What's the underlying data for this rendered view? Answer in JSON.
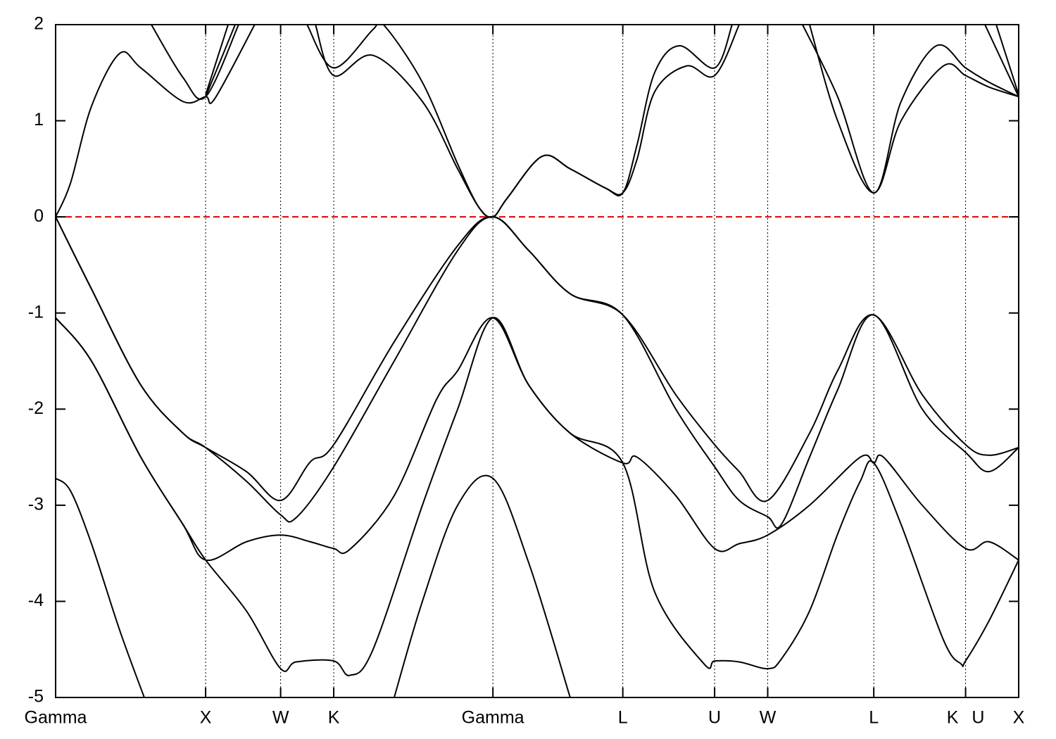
{
  "chart_data": {
    "type": "line",
    "xlim": [
      0,
      6.42
    ],
    "ylim": [
      -5,
      2
    ],
    "yticks": [
      -5,
      -4,
      -3,
      -2,
      -1,
      0,
      1,
      2
    ],
    "xticks": [
      {
        "value": 0,
        "label": "Gamma"
      },
      {
        "value": 1.0,
        "label": "X"
      },
      {
        "value": 1.5,
        "label": "W"
      },
      {
        "value": 1.854,
        "label": "K"
      },
      {
        "value": 2.915,
        "label": "Gamma"
      },
      {
        "value": 3.781,
        "label": "L"
      },
      {
        "value": 4.393,
        "label": "U"
      },
      {
        "value": 4.747,
        "label": "W"
      },
      {
        "value": 5.454,
        "label": "L"
      },
      {
        "value": 6.066,
        "label": "K U"
      },
      {
        "value": 6.42,
        "label": "X"
      }
    ],
    "grid": true,
    "hline": {
      "y": 0,
      "color": "#dd0000"
    },
    "series": [
      {
        "color": "#000000",
        "x": [
          0,
          0.239,
          0.568,
          0.849,
          1.0,
          1.272,
          1.5,
          1.697,
          1.854,
          2.257,
          2.68,
          2.915,
          3.154,
          3.43,
          3.781,
          4.134,
          4.393,
          4.557,
          4.747,
          5.026,
          5.213,
          5.454,
          5.777,
          6.066,
          6.223,
          6.42
        ],
        "values": [
          0,
          -0.75,
          -1.75,
          -2.25,
          -2.4,
          -2.65,
          -2.95,
          -2.55,
          -2.37,
          -1.3,
          -0.3,
          0,
          -0.35,
          -0.8,
          -1.02,
          -1.85,
          -2.37,
          -2.65,
          -2.95,
          -2.25,
          -1.6,
          -1.02,
          -1.85,
          -2.37,
          -2.48,
          -2.4
        ]
      },
      {
        "color": "#000000",
        "x": [
          0,
          0.239,
          0.568,
          0.849,
          1.0,
          1.272,
          1.5,
          1.603,
          1.854,
          2.257,
          2.68,
          2.915,
          3.154,
          3.43,
          3.781,
          4.134,
          4.393,
          4.557,
          4.747,
          4.838,
          5.026,
          5.213,
          5.454,
          5.777,
          6.066,
          6.223,
          6.42
        ],
        "values": [
          0,
          -0.75,
          -1.75,
          -2.25,
          -2.4,
          -2.75,
          -3.1,
          -3.13,
          -2.6,
          -1.5,
          -0.35,
          0,
          -0.35,
          -0.8,
          -1.02,
          -2.0,
          -2.6,
          -2.95,
          -3.12,
          -3.2,
          -2.5,
          -1.8,
          -1.02,
          -2.0,
          -2.45,
          -2.65,
          -2.4
        ]
      },
      {
        "color": "#000000",
        "x": [
          0,
          0.239,
          0.568,
          0.849,
          1.0,
          1.272,
          1.5,
          1.697,
          1.854,
          1.961,
          2.257,
          2.539,
          2.68,
          2.915,
          3.154,
          3.43,
          3.781,
          3.876,
          4.134,
          4.393,
          4.557,
          4.747,
          5.026,
          5.364,
          5.454,
          5.519,
          5.777,
          6.066,
          6.223,
          6.42
        ],
        "values": [
          -1.05,
          -1.5,
          -2.5,
          -3.2,
          -3.57,
          -3.38,
          -3.31,
          -3.38,
          -3.45,
          -3.46,
          -2.9,
          -1.9,
          -1.6,
          -1.05,
          -1.75,
          -2.25,
          -2.56,
          -2.5,
          -2.9,
          -3.45,
          -3.4,
          -3.31,
          -3.0,
          -2.5,
          -2.56,
          -2.5,
          -3.0,
          -3.45,
          -3.38,
          -3.57
        ]
      },
      {
        "color": "#000000",
        "x": [
          0,
          0.239,
          0.568,
          0.849,
          1.0,
          1.272,
          1.5,
          1.603,
          1.854,
          1.961,
          2.116,
          2.445,
          2.68,
          2.915,
          3.154,
          3.43,
          3.781,
          3.993,
          4.322,
          4.393,
          4.557,
          4.747,
          4.838,
          5.026,
          5.213,
          5.364,
          5.454,
          5.636,
          5.918,
          6.035,
          6.066,
          6.223,
          6.42
        ],
        "values": [
          -1.05,
          -1.5,
          -2.5,
          -3.2,
          -3.57,
          -4.1,
          -4.7,
          -4.63,
          -4.62,
          -4.77,
          -4.5,
          -3.0,
          -2.0,
          -1.05,
          -1.75,
          -2.25,
          -2.56,
          -3.9,
          -4.65,
          -4.62,
          -4.63,
          -4.7,
          -4.6,
          -4.1,
          -3.3,
          -2.75,
          -2.56,
          -3.2,
          -4.4,
          -4.65,
          -4.62,
          -4.2,
          -3.57
        ]
      },
      {
        "color": "#000000",
        "x": [
          0,
          0.099,
          0.239,
          0.427,
          0.591,
          1.5,
          2.257,
          2.445,
          2.68,
          2.915,
          3.154,
          3.43
        ],
        "values": [
          -2.72,
          -2.85,
          -3.4,
          -4.3,
          -5.0,
          null,
          -5.0,
          -4.0,
          -3.0,
          -2.72,
          -3.6,
          -5.0
        ]
      },
      {
        "color": "#000000",
        "x": [
          0,
          0.099,
          0.239,
          0.427,
          0.568,
          0.849,
          1.0,
          1.061,
          1.327,
          1.6,
          1.732,
          1.854,
          2.116,
          2.445,
          2.68,
          2.821,
          2.915,
          3.013,
          3.243,
          3.43,
          3.665,
          3.781,
          3.876,
          3.993,
          4.205,
          4.393,
          4.557,
          4.75,
          5.026,
          5.213,
          5.454,
          5.636,
          5.918,
          6.066,
          6.223,
          6.42
        ],
        "values": [
          0,
          0.35,
          1.15,
          1.7,
          1.55,
          1.2,
          1.25,
          1.23,
          2.0,
          null,
          2.0,
          1.47,
          1.68,
          1.2,
          0.5,
          0.1,
          0,
          0.2,
          0.63,
          0.5,
          0.3,
          0.25,
          0.6,
          1.3,
          1.57,
          1.47,
          2.0,
          null,
          2.0,
          1.0,
          0.25,
          1.0,
          1.57,
          1.47,
          1.35,
          1.25
        ]
      },
      {
        "color": "#000000",
        "x": [
          0.638,
          0.849,
          1.0,
          1.22,
          1.5,
          1.676,
          1.854,
          2.116,
          2.185,
          2.445,
          2.68,
          2.821,
          2.915,
          3.013,
          3.243,
          3.43,
          3.665,
          3.781,
          3.876,
          3.993,
          4.158,
          4.393,
          4.51,
          4.75,
          4.979,
          5.213,
          5.454,
          5.636,
          5.871,
          6.066,
          6.223,
          6.42
        ],
        "values": [
          2.0,
          1.45,
          1.25,
          2.0,
          null,
          2.0,
          1.55,
          1.95,
          2.0,
          1.4,
          0.55,
          0.1,
          0,
          0.2,
          0.63,
          0.5,
          0.3,
          0.25,
          0.75,
          1.5,
          1.78,
          1.55,
          2.0,
          null,
          2.0,
          1.25,
          0.25,
          1.2,
          1.78,
          1.55,
          1.4,
          1.25
        ]
      },
      {
        "color": "#000000",
        "x": [
          1.0,
          1.197,
          1.5,
          6.195,
          6.42
        ],
        "values": [
          1.25,
          2.0,
          null,
          2.0,
          1.25
        ]
      },
      {
        "color": "#000000",
        "x": [
          1.0,
          1.15,
          1.5,
          6.27,
          6.42
        ],
        "values": [
          1.27,
          2.0,
          null,
          2.0,
          1.27
        ]
      }
    ]
  }
}
